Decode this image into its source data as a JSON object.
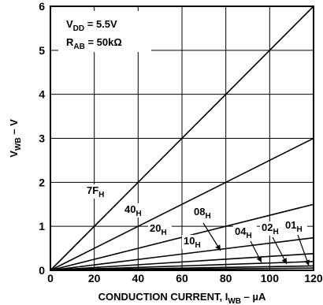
{
  "chart_data": {
    "type": "line",
    "xlabel": {
      "main": "CONDUCTION CURRENT, I",
      "sub": "WB",
      "suffix": " – µA"
    },
    "ylabel": {
      "main": "V",
      "sub": "WB",
      "suffix": " – V"
    },
    "xlim": [
      0,
      120
    ],
    "ylim": [
      0,
      6
    ],
    "xticks": [
      "0",
      "20",
      "40",
      "60",
      "80",
      "100",
      "120"
    ],
    "yticks": [
      "0",
      "1",
      "2",
      "3",
      "4",
      "5",
      "6"
    ],
    "grid": true,
    "conditions": [
      {
        "main": "V",
        "sub": "DD",
        "suffix": " = 5.5V"
      },
      {
        "main": "R",
        "sub": "AB",
        "suffix": " = 50kΩ"
      }
    ],
    "series": [
      {
        "name": {
          "main": "7F",
          "sub": "H"
        },
        "x": [
          0,
          120
        ],
        "y": [
          0,
          6.0
        ]
      },
      {
        "name": {
          "main": "40",
          "sub": "H"
        },
        "x": [
          0,
          120
        ],
        "y": [
          0,
          3.0
        ]
      },
      {
        "name": {
          "main": "20",
          "sub": "H"
        },
        "x": [
          0,
          120
        ],
        "y": [
          0,
          1.5
        ]
      },
      {
        "name": {
          "main": "10",
          "sub": "H"
        },
        "x": [
          0,
          120
        ],
        "y": [
          0,
          0.74
        ]
      },
      {
        "name": {
          "main": "08",
          "sub": "H"
        },
        "x": [
          0,
          120
        ],
        "y": [
          0,
          0.38
        ]
      },
      {
        "name": {
          "main": "04",
          "sub": "H"
        },
        "x": [
          0,
          120
        ],
        "y": [
          0,
          0.2
        ]
      },
      {
        "name": {
          "main": "02",
          "sub": "H"
        },
        "x": [
          0,
          120
        ],
        "y": [
          0,
          0.1
        ]
      },
      {
        "name": {
          "main": "01",
          "sub": "H"
        },
        "x": [
          0,
          120
        ],
        "y": [
          0,
          0.05
        ]
      }
    ]
  }
}
